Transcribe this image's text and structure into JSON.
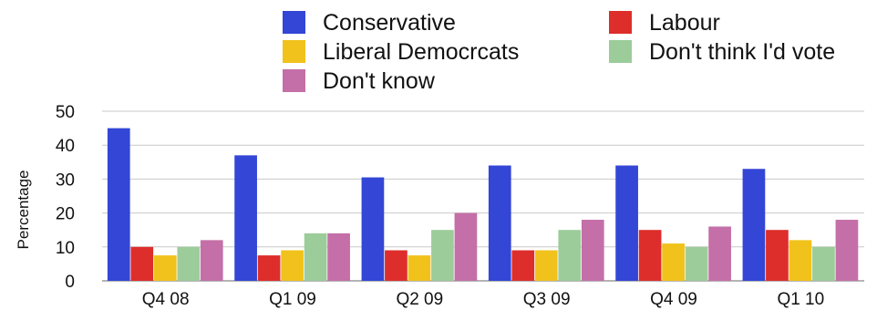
{
  "chart_data": {
    "type": "bar",
    "title": "",
    "xlabel": "",
    "ylabel": "Percentage",
    "ylim": [
      0,
      50
    ],
    "yticks": [
      0,
      10,
      20,
      30,
      40,
      50
    ],
    "grid": true,
    "legend_position": "top",
    "categories": [
      "Q4 08",
      "Q1 09",
      "Q2 09",
      "Q3 09",
      "Q4 09",
      "Q1 10"
    ],
    "series": [
      {
        "name": "Conservative",
        "color": "#3346d6",
        "values": [
          45,
          37,
          30.5,
          34,
          34,
          33
        ]
      },
      {
        "name": "Labour",
        "color": "#dd2e2b",
        "values": [
          10,
          7.5,
          9,
          9,
          15,
          15
        ]
      },
      {
        "name": "Liberal Democrcats",
        "color": "#f1c21b",
        "values": [
          7.5,
          9,
          7.5,
          9,
          11,
          12
        ]
      },
      {
        "name": "Don't think I'd vote",
        "color": "#9ccc9a",
        "values": [
          10,
          14,
          15,
          15,
          10,
          10
        ]
      },
      {
        "name": "Don't know",
        "color": "#c46fa8",
        "values": [
          12,
          14,
          20,
          18,
          16,
          18
        ]
      }
    ]
  }
}
